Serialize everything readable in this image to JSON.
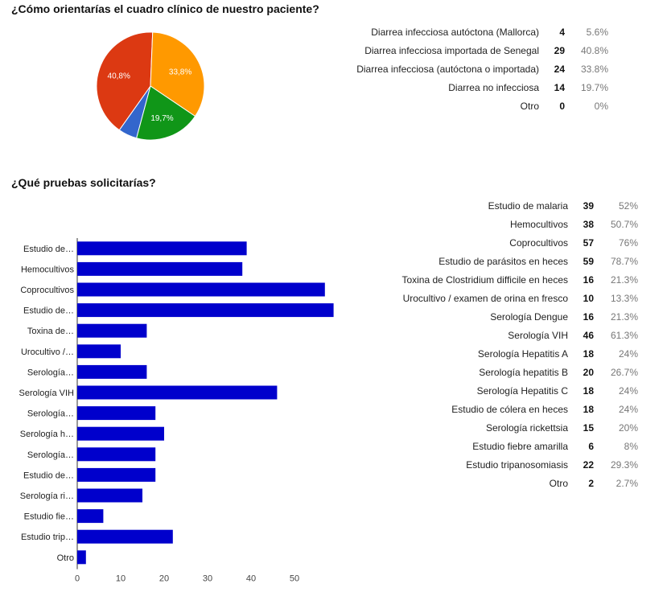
{
  "q1": {
    "title": "¿Cómo orientarías el cuadro clínico de nuestro paciente?",
    "rows": [
      {
        "label": "Diarrea infecciosa autóctona (Mallorca)",
        "count": "4",
        "percent": "5.6%"
      },
      {
        "label": "Diarrea infecciosa importada de Senegal",
        "count": "29",
        "percent": "40.8%"
      },
      {
        "label": "Diarrea infecciosa (autóctona o importada)",
        "count": "24",
        "percent": "33.8%"
      },
      {
        "label": "Diarrea no infecciosa",
        "count": "14",
        "percent": "19.7%"
      },
      {
        "label": "Otro",
        "count": "0",
        "percent": "0%"
      }
    ]
  },
  "q2": {
    "title": "¿Qué pruebas solicitarías?",
    "rows": [
      {
        "label": "Estudio de malaria",
        "count": "39",
        "percent": "52%"
      },
      {
        "label": "Hemocultivos",
        "count": "38",
        "percent": "50.7%"
      },
      {
        "label": "Coprocultivos",
        "count": "57",
        "percent": "76%"
      },
      {
        "label": "Estudio de parásitos en heces",
        "count": "59",
        "percent": "78.7%"
      },
      {
        "label": "Toxina de Clostridium difficile en heces",
        "count": "16",
        "percent": "21.3%"
      },
      {
        "label": "Urocultivo / examen de orina en fresco",
        "count": "10",
        "percent": "13.3%"
      },
      {
        "label": "Serología Dengue",
        "count": "16",
        "percent": "21.3%"
      },
      {
        "label": "Serología VIH",
        "count": "46",
        "percent": "61.3%"
      },
      {
        "label": "Serología Hepatitis A",
        "count": "18",
        "percent": "24%"
      },
      {
        "label": "Serología hepatitis B",
        "count": "20",
        "percent": "26.7%"
      },
      {
        "label": "Serología Hepatitis C",
        "count": "18",
        "percent": "24%"
      },
      {
        "label": "Estudio de cólera en heces",
        "count": "18",
        "percent": "24%"
      },
      {
        "label": "Serología rickettsia",
        "count": "15",
        "percent": "20%"
      },
      {
        "label": "Estudio fiebre amarilla",
        "count": "6",
        "percent": "8%"
      },
      {
        "label": "Estudio tripanosomiasis",
        "count": "22",
        "percent": "29.3%"
      },
      {
        "label": "Otro",
        "count": "2",
        "percent": "2.7%"
      }
    ]
  },
  "chart_data": [
    {
      "type": "pie",
      "categories": [
        "Diarrea infecciosa autóctona (Mallorca)",
        "Diarrea infecciosa importada de Senegal",
        "Diarrea infecciosa (autóctona o importada)",
        "Diarrea no infecciosa",
        "Otro"
      ],
      "values": [
        4,
        29,
        24,
        14,
        0
      ],
      "colors": [
        "#3366cc",
        "#dc3912",
        "#ff9900",
        "#109618",
        "#990099"
      ],
      "slice_labels": [
        "",
        "40,8%",
        "33,8%",
        "19,7%",
        ""
      ]
    },
    {
      "type": "bar",
      "orientation": "horizontal",
      "categories": [
        "Estudio de…",
        "Hemocultivos",
        "Coprocultivos",
        "Estudio de…",
        "Toxina de…",
        "Urocultivo /…",
        "Serología…",
        "Serología VIH",
        "Serología…",
        "Serología h…",
        "Serología…",
        "Estudio de…",
        "Serología ri…",
        "Estudio fie…",
        "Estudio trip…",
        "Otro"
      ],
      "values": [
        39,
        38,
        57,
        59,
        16,
        10,
        16,
        46,
        18,
        20,
        18,
        18,
        15,
        6,
        22,
        2
      ],
      "x_ticks": [
        0,
        10,
        20,
        30,
        40,
        50
      ],
      "xlim": [
        0,
        60
      ],
      "bar_color": "#0000cc"
    }
  ]
}
